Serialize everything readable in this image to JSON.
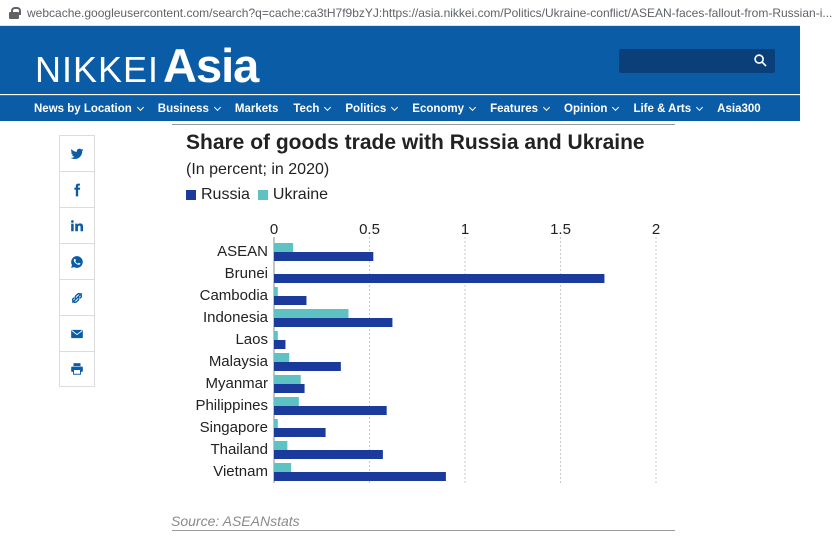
{
  "browser": {
    "url": "webcache.googleusercontent.com/search?q=cache:ca3tH7f9bzYJ:https://asia.nikkei.com/Politics/Ukraine-conflict/ASEAN-faces-fallout-from-Russian-i..."
  },
  "header": {
    "logo_left": "NIKKEI",
    "logo_right": "Asia",
    "search_placeholder": ""
  },
  "colors": {
    "brand": "#0a5ca7",
    "russia": "#1a3a9c",
    "ukraine": "#5fc2c2"
  },
  "nav": {
    "items": [
      {
        "label": "News by Location",
        "has_menu": true
      },
      {
        "label": "Business",
        "has_menu": true
      },
      {
        "label": "Markets",
        "has_menu": false
      },
      {
        "label": "Tech",
        "has_menu": true
      },
      {
        "label": "Politics",
        "has_menu": true
      },
      {
        "label": "Economy",
        "has_menu": true
      },
      {
        "label": "Features",
        "has_menu": true
      },
      {
        "label": "Opinion",
        "has_menu": true
      },
      {
        "label": "Life & Arts",
        "has_menu": true
      },
      {
        "label": "Asia300",
        "has_menu": false
      }
    ]
  },
  "share": {
    "icons": [
      "twitter-icon",
      "facebook-icon",
      "linkedin-icon",
      "whatsapp-icon",
      "link-icon",
      "email-icon",
      "print-icon"
    ]
  },
  "article": {
    "source": "Source: ASEANstats"
  },
  "chart_data": {
    "type": "bar",
    "orientation": "horizontal",
    "title": "Share of goods trade with Russia and Ukraine",
    "subtitle": "(In percent; in 2020)",
    "categories": [
      "ASEAN",
      "Brunei",
      "Cambodia",
      "Indonesia",
      "Laos",
      "Malaysia",
      "Myanmar",
      "Philippines",
      "Singapore",
      "Thailand",
      "Vietnam"
    ],
    "series": [
      {
        "name": "Russia",
        "values": [
          0.52,
          1.73,
          0.17,
          0.62,
          0.06,
          0.35,
          0.16,
          0.59,
          0.27,
          0.57,
          0.9
        ]
      },
      {
        "name": "Ukraine",
        "values": [
          0.1,
          0.0,
          0.02,
          0.39,
          0.02,
          0.08,
          0.14,
          0.13,
          0.02,
          0.07,
          0.09
        ]
      }
    ],
    "xlim": [
      0,
      2
    ],
    "xticks": [
      "0",
      "0.5",
      "1",
      "1.5",
      "2"
    ],
    "grid": true,
    "legend": "top-left"
  }
}
